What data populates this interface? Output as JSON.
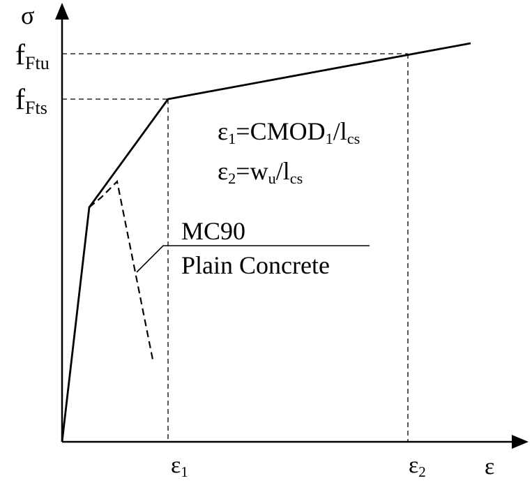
{
  "axes": {
    "y_symbol": "σ",
    "x_symbol": "ε"
  },
  "y_ticks": {
    "f_ftu": {
      "base": "f",
      "sub": "Ftu"
    },
    "f_fts": {
      "base": "f",
      "sub": "Fts"
    }
  },
  "x_ticks": {
    "eps1": {
      "base": "ε",
      "sub": "1"
    },
    "eps2": {
      "base": "ε",
      "sub": "2"
    }
  },
  "equations": {
    "eq1": {
      "lhs": "ε",
      "lhs_sub": "1",
      "mid": "=CMOD",
      "mid_sub": "1",
      "rhs": "/l",
      "rhs_sub": "cs"
    },
    "eq2": {
      "lhs": "ε",
      "lhs_sub": "2",
      "mid": "=w",
      "mid_sub": "u",
      "rhs": "/l",
      "rhs_sub": "cs"
    }
  },
  "annotation": {
    "line1": "MC90",
    "line2": "Plain Concrete"
  },
  "colors": {
    "ink": "#000000",
    "background": "#ffffff"
  }
}
